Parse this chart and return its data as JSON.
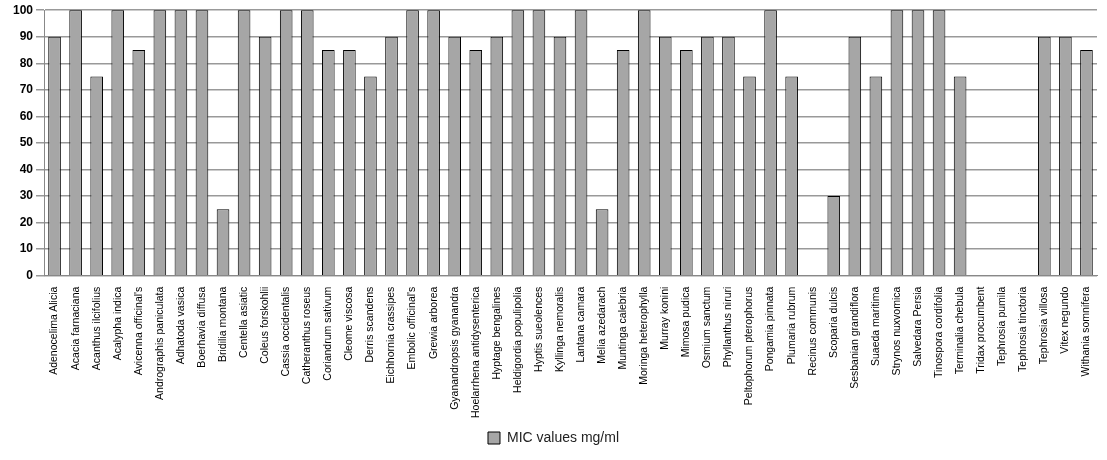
{
  "chart_data": {
    "type": "bar",
    "categories": [
      "Adenocelima Alicia",
      "Acacia farnaciana",
      "Acanthus ilcifolius",
      "Acalypha indica",
      "Avicenna officinal's",
      "Andrographis paniculata",
      "Adhatoda vasica",
      "Boerhavia diffusa",
      "Bridilia montana",
      "Centella asiatic",
      "Coleus forskohlii",
      "Cassia occidentalis",
      "Catheranthus roseus",
      "Coriandrum sativum",
      "Cleome viscosa",
      "Derris scandens",
      "Eichhornia crassipes",
      "Embolic officinal's",
      "Grewia arborea",
      "Gyanandropsis gyanandra",
      "Hoelarrhena antidysenterica",
      "Hyptage bengalines",
      "Heldigordia populipolia",
      "Hyptis sueolences",
      "Kyllinga nemoralis",
      "Lantana camara",
      "Melia azedarach",
      "Muntinga calebria",
      "Moringa heterophylla",
      "Murray konini",
      "Mimosa pudica",
      "Osmium sanctum",
      "Phyllanthus niruri",
      "Peltophorum pterophorus",
      "Pongamia pinnata",
      "Plumaria rubrum",
      "Recinus communis",
      "Scoparia dulcis",
      "Sesbanian grandiflora",
      "Suaeda maritima",
      "Strynos nuxvomica",
      "Salvedara Persia",
      "Tinospora cordifolia",
      "Terminalia chebula",
      "Tridax procumbent",
      "Tephrosia pumila",
      "Tephrosia tinctoria",
      "Tephrosia villosa",
      "Vitex negundo",
      "Withania somnifera"
    ],
    "series": [
      {
        "name": "MIC values mg/ml",
        "color": "#a6a6a6",
        "values": [
          90,
          100,
          75,
          100,
          85,
          100,
          100,
          100,
          25,
          100,
          90,
          100,
          100,
          85,
          85,
          75,
          90,
          100,
          100,
          90,
          85,
          90,
          100,
          100,
          90,
          100,
          25,
          85,
          100,
          90,
          85,
          90,
          90,
          75,
          100,
          75,
          0,
          30,
          90,
          75,
          100,
          100,
          100,
          75,
          0,
          0,
          0,
          90,
          90,
          85
        ]
      }
    ],
    "ylim": [
      0,
      100
    ],
    "yticks": [
      0,
      10,
      20,
      30,
      40,
      50,
      60,
      70,
      80,
      90,
      100
    ],
    "grid": "y",
    "legend": "bottom"
  }
}
